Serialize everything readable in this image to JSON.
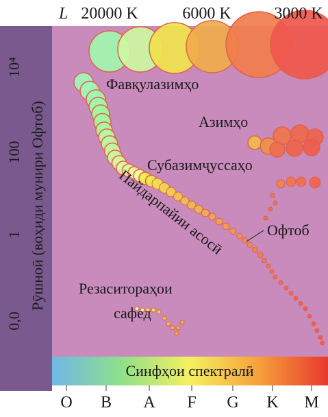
{
  "header": {
    "luminosity_symbol": "L",
    "temperatures": [
      "20000 K",
      "6000 K",
      "3000 K"
    ]
  },
  "y_axis": {
    "label": "Рӯшноӣ (воҳиди мунири Офтоб)",
    "ticks": [
      "10⁴",
      "100",
      "1",
      "0,0"
    ]
  },
  "regions": {
    "supergiants": "Фавқулазимҳо",
    "giants": "Азимҳо",
    "subgiants": "Субазимҷуссаҳо",
    "main_sequence": "Пайдарпайии асосӣ",
    "sun": "Офтоб",
    "white_dwarfs": [
      "Резаситораҳои",
      "сафед"
    ]
  },
  "spectral_bar": "Синфҳои спектралӣ",
  "classes": [
    "O",
    "B",
    "A",
    "F",
    "G",
    "K",
    "M"
  ]
}
